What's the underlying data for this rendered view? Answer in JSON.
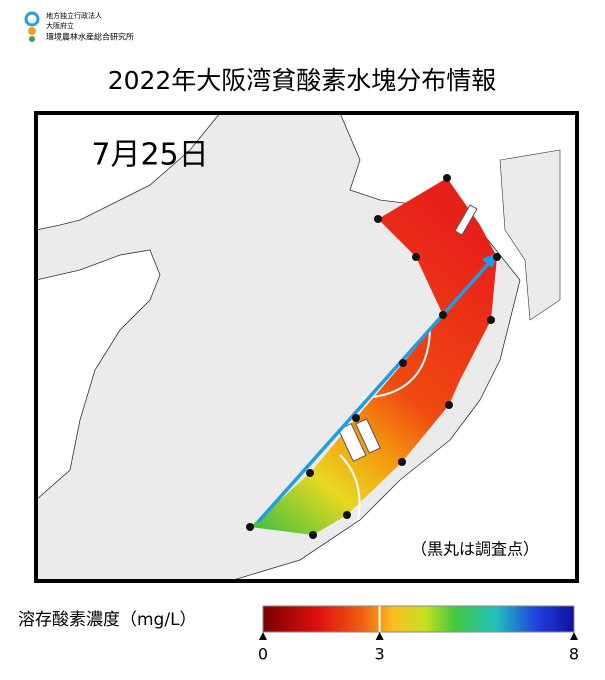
{
  "header": {
    "org_lines": [
      "地方独立行政法人",
      "大阪府立",
      "環境農林水産総合研究所"
    ],
    "title": "2022年大阪湾貧酸素水塊分布情報"
  },
  "map": {
    "date": "7月25日",
    "note": "（黒丸は調査点）"
  },
  "colorbar": {
    "label": "溶存酸素濃度（mg/L）",
    "lim": [
      0,
      8
    ],
    "ticks": [
      0,
      3,
      8
    ]
  }
}
